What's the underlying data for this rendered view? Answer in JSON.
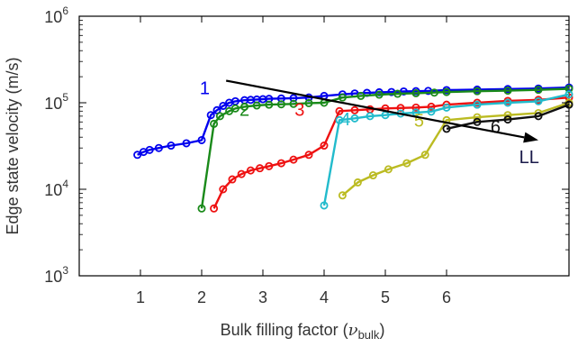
{
  "chart_data": {
    "type": "line",
    "xlabel_main": "Bulk filling factor (",
    "xlabel_nu": "ν",
    "xlabel_sub": "bulk",
    "xlabel_close": ")",
    "ylabel": "Edge state velocity (m/s)",
    "xlim": [
      0.0,
      8.0
    ],
    "ylim": [
      1000,
      1000000
    ],
    "yscale": "log",
    "x_ticks": [
      {
        "value": 1,
        "label": "1"
      },
      {
        "value": 2,
        "label": "2"
      },
      {
        "value": 3,
        "label": "3"
      },
      {
        "value": 4,
        "label": "4"
      },
      {
        "value": 5,
        "label": "5"
      },
      {
        "value": 6,
        "label": "6"
      }
    ],
    "y_ticks": [
      {
        "value": 1000,
        "base": "10",
        "exp": "3"
      },
      {
        "value": 10000,
        "base": "10",
        "exp": "4"
      },
      {
        "value": 100000,
        "base": "10",
        "exp": "5"
      },
      {
        "value": 1000000,
        "base": "10",
        "exp": "6"
      }
    ],
    "series": [
      {
        "label": "1",
        "color": "#0000ee",
        "label_x": 2.05,
        "label_y": 125000,
        "x": [
          0.95,
          1.05,
          1.15,
          1.3,
          1.5,
          1.75,
          2.0,
          2.15,
          2.25,
          2.35,
          2.45,
          2.55,
          2.7,
          2.8,
          2.9,
          3.0,
          3.1,
          3.3,
          3.5,
          3.75,
          4.0,
          4.3,
          4.5,
          4.7,
          4.9,
          5.1,
          5.3,
          5.5,
          5.7,
          6.0,
          6.5,
          7.0,
          7.5,
          8.0
        ],
        "y": [
          25000,
          27000,
          28500,
          30000,
          32000,
          34000,
          37000,
          72000,
          82000,
          92000,
          100000,
          104000,
          107000,
          108000,
          109000,
          110000,
          111000,
          112000,
          113000,
          115000,
          120000,
          125000,
          128000,
          130000,
          132000,
          133000,
          135000,
          136000,
          137000,
          140000,
          142000,
          144000,
          146000,
          150000
        ]
      },
      {
        "label": "2",
        "color": "#1a8a1a",
        "label_x": 2.7,
        "label_y": 71000,
        "x": [
          2.0,
          2.2,
          2.3,
          2.45,
          2.55,
          2.7,
          2.9,
          3.1,
          3.3,
          3.5,
          3.75,
          4.0,
          4.3,
          4.6,
          4.9,
          5.2,
          5.5,
          5.8,
          6.0,
          6.5,
          7.0,
          7.5,
          8.0
        ],
        "y": [
          6000,
          57000,
          70000,
          80000,
          86000,
          90000,
          93000,
          95000,
          96000,
          97000,
          99000,
          100000,
          115000,
          120000,
          124000,
          127000,
          129000,
          131000,
          133000,
          136000,
          138000,
          141000,
          145000
        ]
      },
      {
        "label": "3",
        "color": "#ee1111",
        "label_x": 3.6,
        "label_y": 71000,
        "x": [
          2.2,
          2.35,
          2.5,
          2.65,
          2.8,
          2.95,
          3.1,
          3.3,
          3.5,
          3.75,
          4.0,
          4.25,
          4.5,
          4.75,
          5.0,
          5.25,
          5.5,
          5.75,
          6.0,
          6.5,
          7.0,
          7.5,
          8.0
        ],
        "y": [
          6000,
          10000,
          13000,
          15000,
          16500,
          17500,
          18500,
          20000,
          22000,
          25000,
          32000,
          80000,
          82000,
          84000,
          86000,
          87000,
          88000,
          90000,
          95000,
          100000,
          105000,
          108000,
          115000
        ]
      },
      {
        "label": "4",
        "color": "#22bbcc",
        "label_x": 4.35,
        "label_y": 55000,
        "x": [
          4.0,
          4.25,
          4.5,
          4.75,
          5.0,
          5.25,
          5.5,
          5.75,
          6.0,
          6.5,
          7.0,
          7.5,
          8.0
        ],
        "y": [
          6500,
          63000,
          66000,
          70000,
          72000,
          75000,
          77000,
          79000,
          88000,
          95000,
          100000,
          104000,
          125000
        ]
      },
      {
        "label": "5",
        "color": "#bbbb22",
        "label_x": 5.55,
        "label_y": 53000,
        "x": [
          4.3,
          4.55,
          4.8,
          5.05,
          5.35,
          5.65,
          6.0,
          6.5,
          7.0,
          7.5,
          8.0
        ],
        "y": [
          8500,
          12000,
          14500,
          17000,
          20000,
          25000,
          63000,
          68000,
          72000,
          76000,
          100000
        ]
      },
      {
        "label": "6",
        "color": "#111111",
        "label_x": 6.8,
        "label_y": 45000,
        "x": [
          6.0,
          6.5,
          7.0,
          7.5,
          8.0
        ],
        "y": [
          50000,
          60000,
          64000,
          70000,
          95000
        ]
      }
    ],
    "arrow": {
      "x1": 2.4,
      "y1": 180000,
      "x2": 7.5,
      "y2": 37000,
      "color": "#000000"
    },
    "arrow_label": {
      "text": "LL",
      "x": 7.35,
      "y": 20000,
      "color": "#1a1a4a"
    }
  }
}
